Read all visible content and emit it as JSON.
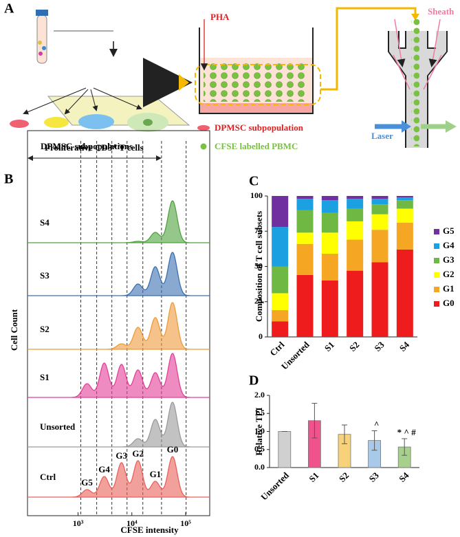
{
  "panel_a": {
    "letter": "A",
    "pha": "PHA",
    "sheath": "Sheath",
    "laser": "Laser",
    "subpops": "DPMSC subpopulations",
    "legend_dpmsc": "DPMSC subpopulation",
    "legend_cfse": "CFSE labelled PBMC"
  },
  "chart_data": [
    {
      "type": "ridge",
      "title": "B",
      "xlabel": "CFSE intensity",
      "ylabel": "Cell Count",
      "xscale": "log",
      "xlim": [
        115,
        280000
      ],
      "xticks": [
        {
          "value": 1000,
          "label": "10³"
        },
        {
          "value": 10000,
          "label": "10⁴"
        },
        {
          "value": 100000,
          "label": "10⁵"
        }
      ],
      "annotation": "Proliferative CD3⁺ T cells",
      "gates": [
        1125,
        2220,
        4250,
        8130,
        16000,
        35600,
        102000
      ],
      "generations": [
        "G5",
        "G4",
        "G3",
        "G2",
        "G1",
        "G0"
      ],
      "peaks": [
        1470,
        3070,
        6420,
        13000,
        27300,
        57000
      ],
      "series": [
        {
          "name": "S4",
          "color": "#4fa23e",
          "values": [
            0,
            0,
            0,
            2,
            15,
            61
          ]
        },
        {
          "name": "S3",
          "color": "#3a6fb0",
          "values": [
            0,
            0,
            0,
            17,
            42,
            63
          ]
        },
        {
          "name": "S2",
          "color": "#ee9a3a",
          "values": [
            0,
            0,
            8,
            32,
            46,
            68
          ]
        },
        {
          "name": "S1",
          "color": "#e23f98",
          "values": [
            20,
            50,
            48,
            40,
            36,
            64
          ]
        },
        {
          "name": "Unsorted",
          "color": "#9a9a9a",
          "values": [
            0,
            0,
            0,
            12,
            40,
            65
          ]
        },
        {
          "name": "Ctrl",
          "color": "#e8605a",
          "values": [
            11,
            30,
            50,
            53,
            23,
            59
          ]
        }
      ]
    },
    {
      "type": "stacked_bar",
      "title": "C",
      "ylabel": "Composition of T cell subsets",
      "categories": [
        "Ctrl",
        "Unsorted",
        "S1",
        "S2",
        "S3",
        "S4"
      ],
      "ylim": [
        0,
        100
      ],
      "yticks": [
        0,
        25,
        50,
        75,
        100
      ],
      "series": [
        {
          "name": "G0",
          "color": "#ee1c1c",
          "values": [
            11,
            44,
            40,
            47,
            53,
            62
          ]
        },
        {
          "name": "G1",
          "color": "#f5a623",
          "values": [
            8,
            22,
            19,
            22,
            23,
            19
          ]
        },
        {
          "name": "G2",
          "color": "#ffff00",
          "values": [
            12,
            8,
            15,
            13,
            11,
            10
          ]
        },
        {
          "name": "G3",
          "color": "#70b844",
          "values": [
            19,
            16,
            14,
            9,
            7,
            6
          ]
        },
        {
          "name": "G4",
          "color": "#1ba1e2",
          "values": [
            28,
            8,
            9,
            7,
            4,
            2
          ]
        },
        {
          "name": "G5",
          "color": "#7030a0",
          "values": [
            22,
            2,
            3,
            2,
            2,
            1
          ]
        }
      ]
    },
    {
      "type": "error_bar",
      "title": "D",
      "ylabel": "Relative TPI",
      "categories": [
        "Unsorted",
        "S1",
        "S2",
        "S3",
        "S4"
      ],
      "values": [
        1.0,
        1.3,
        0.92,
        0.75,
        0.57
      ],
      "errors": [
        0,
        0.48,
        0.26,
        0.27,
        0.23
      ],
      "colors": [
        "#d0d0d0",
        "#f0528c",
        "#f7d27a",
        "#a9c9e8",
        "#a8d08d"
      ],
      "annotations": [
        null,
        null,
        null,
        "^",
        "* ^ #"
      ],
      "ylim": [
        0,
        2
      ],
      "yticks": [
        {
          "value": 0,
          "label": "0.0"
        },
        {
          "value": 0.5,
          "label": "0.5"
        },
        {
          "value": 1,
          "label": "1.0"
        },
        {
          "value": 1.5,
          "label": "1.5"
        },
        {
          "value": 2,
          "label": "2.0"
        }
      ]
    }
  ]
}
